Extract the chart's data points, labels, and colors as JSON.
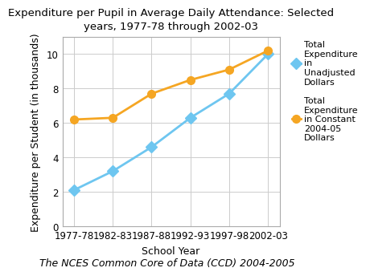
{
  "title": "Expenditure per Pupil in Average Daily Attendance: Selected\nyears, 1977-78 through 2002-03",
  "xlabel": "School Year",
  "ylabel": "Expenditure per Student (in thousands)",
  "footer": "The NCES Common Core of Data (CCD) 2004-2005",
  "x_labels": [
    "1977-78",
    "1982-83",
    "1987-88",
    "1992-93",
    "1997-98",
    "2002-03"
  ],
  "unadjusted_values": [
    2.1,
    3.2,
    4.6,
    6.3,
    7.7,
    10.0
  ],
  "constant_values": [
    6.2,
    6.3,
    7.7,
    8.5,
    9.1,
    10.2
  ],
  "unadjusted_color": "#6ec6f0",
  "constant_color": "#f5a623",
  "unadjusted_label": "Total\nExpenditure\nin\nUnadjusted\nDollars",
  "constant_label": "Total\nExpenditure\nin Constant\n2004-05\nDollars",
  "ylim": [
    0,
    11
  ],
  "yticks": [
    0,
    2,
    4,
    6,
    8,
    10
  ],
  "background_color": "#ffffff",
  "grid_color": "#cccccc",
  "title_fontsize": 9.5,
  "label_fontsize": 9,
  "tick_fontsize": 8.5,
  "legend_fontsize": 8,
  "footer_fontsize": 9
}
